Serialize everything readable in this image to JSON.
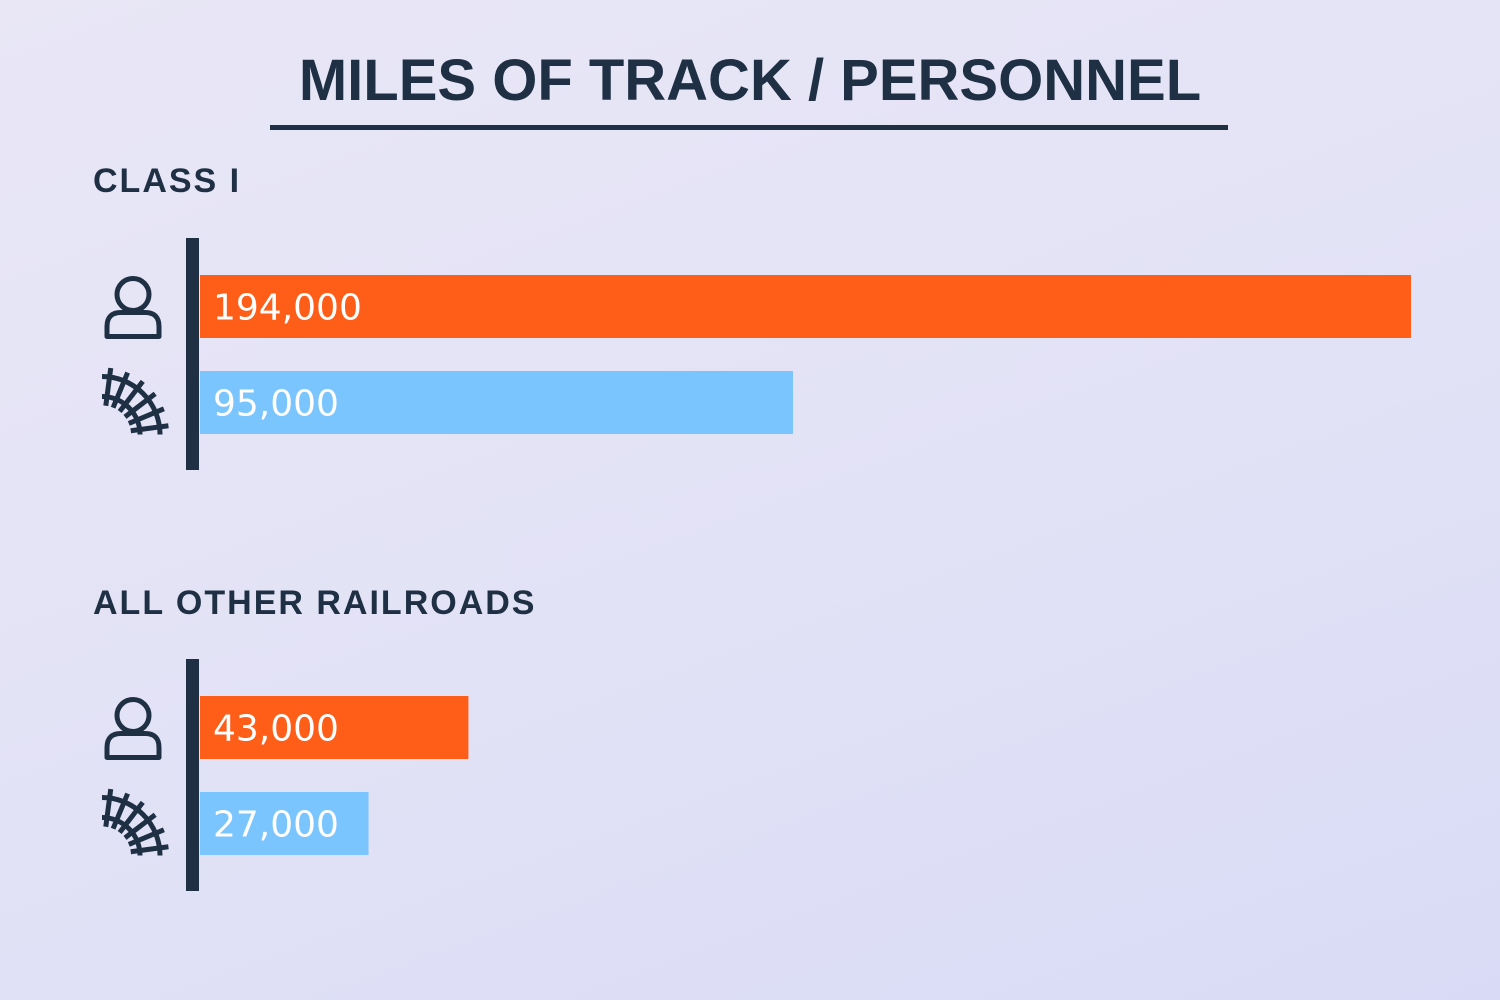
{
  "title": "MILES OF TRACK / PERSONNEL",
  "colors": {
    "background_start": "#e9e7f6",
    "background_end": "#d9dbf6",
    "text": "#1f3045",
    "axis": "#1f3045",
    "personnel": "#fe5e18",
    "track": "#7ac5fd"
  },
  "icons": {
    "personnel": "person-icon",
    "track": "railroad-track-icon"
  },
  "chart_data": {
    "type": "bar",
    "orientation": "horizontal",
    "title": "MILES OF TRACK / PERSONNEL",
    "xlim": [
      0,
      194000
    ],
    "grid": false,
    "legend": "none",
    "groups": [
      {
        "label": "CLASS I",
        "bars": [
          {
            "icon": "person-icon",
            "value": 194000,
            "label": "194,000",
            "color": "#fe5e18"
          },
          {
            "icon": "railroad-track-icon",
            "value": 95000,
            "label": "95,000",
            "color": "#7ac5fd"
          }
        ]
      },
      {
        "label": "ALL OTHER RAILROADS",
        "bars": [
          {
            "icon": "person-icon",
            "value": 43000,
            "label": "43,000",
            "color": "#fe5e18"
          },
          {
            "icon": "railroad-track-icon",
            "value": 27000,
            "label": "27,000",
            "color": "#7ac5fd"
          }
        ]
      }
    ]
  }
}
